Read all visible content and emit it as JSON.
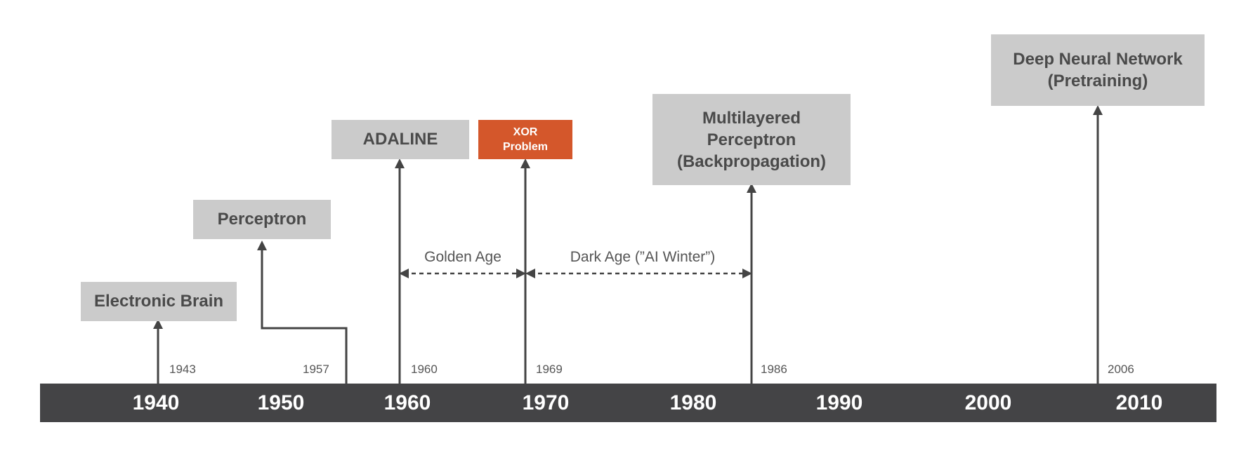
{
  "events": [
    {
      "id": "electronic-brain",
      "label": "Electronic Brain",
      "year": "1943"
    },
    {
      "id": "perceptron",
      "label": "Perceptron",
      "year": "1957"
    },
    {
      "id": "adaline",
      "label": "ADALINE",
      "year": "1960"
    },
    {
      "id": "xor-problem",
      "label": "XOR\nProblem",
      "year": "1969"
    },
    {
      "id": "multilayered-perceptron",
      "label": "Multilayered\nPerceptron\n(Backpropagation)",
      "year": "1986"
    },
    {
      "id": "deep-neural-network",
      "label": "Deep Neural Network\n(Pretraining)",
      "year": "2006"
    }
  ],
  "periods": [
    {
      "id": "golden-age",
      "label": "Golden Age"
    },
    {
      "id": "dark-age",
      "label": "Dark Age (”AI Winter”)"
    }
  ],
  "axis": {
    "decades": [
      "1940",
      "1950",
      "1960",
      "1970",
      "1980",
      "1990",
      "2000",
      "2010"
    ]
  },
  "colors": {
    "axis_bar": "#444446",
    "event_box": "#cbcbcb",
    "highlight_box": "#d4572b",
    "arrow": "#444444"
  }
}
